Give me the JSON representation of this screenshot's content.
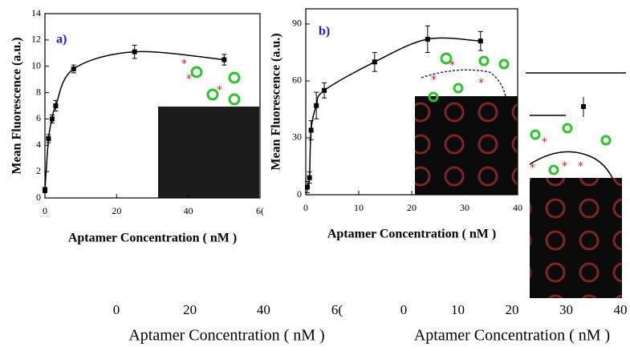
{
  "chart_data": [
    {
      "type": "scatter",
      "label": "a)",
      "y_label": "Mean Fluorescence (a.u.)",
      "x_label": "Aptamer Concentration ( nM )",
      "x": [
        0,
        1,
        2,
        3,
        8,
        25,
        50
      ],
      "values": [
        0.6,
        4.5,
        6.0,
        7.0,
        9.8,
        11.1,
        10.5
      ],
      "errors": [
        0.2,
        0.3,
        0.3,
        0.4,
        0.3,
        0.5,
        0.4
      ],
      "color": "#000000",
      "xlim": [
        0,
        60
      ],
      "xticks": [
        0,
        20,
        40,
        {
          "value": 60,
          "label": "6("
        }
      ],
      "ylim": [
        0,
        14
      ],
      "yticks": [
        0,
        2,
        4,
        6,
        8,
        10,
        12,
        14
      ]
    },
    {
      "type": "scatter",
      "label": "b)",
      "y_label": "Mean Fluorescence (a.u.)",
      "x_label": "Aptamer Concentration ( nM )",
      "x": [
        0.3,
        0.7,
        1,
        2,
        3.5,
        13,
        23,
        33
      ],
      "values": [
        4,
        9,
        34,
        47,
        55,
        70,
        82,
        81
      ],
      "errors": [
        3,
        3,
        5,
        7,
        4,
        5,
        7,
        5
      ],
      "color": "#000000",
      "xlim": [
        0,
        40
      ],
      "xticks": [
        0,
        10,
        20,
        30,
        40
      ],
      "ylim": [
        0,
        98
      ],
      "yticks": [
        0,
        30,
        60,
        90
      ]
    },
    {
      "type": "axis",
      "x_label": "Aptamer Concentration ( nM )",
      "xlim": [
        0,
        60
      ],
      "xticks": [
        0,
        20,
        40,
        {
          "value": 60,
          "label": "6("
        }
      ]
    },
    {
      "type": "axis",
      "x_label": "Aptamer Concentration ( nM )",
      "xlim": [
        0,
        40
      ],
      "xticks": [
        0,
        10,
        20,
        30,
        40
      ]
    }
  ]
}
